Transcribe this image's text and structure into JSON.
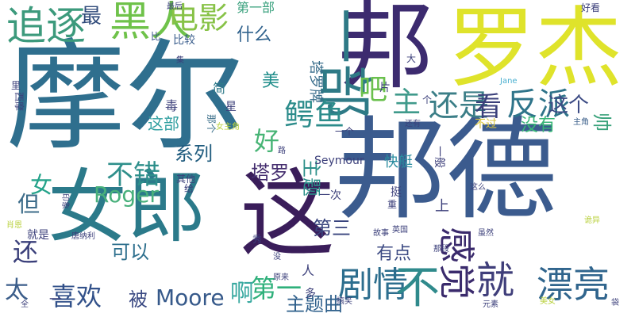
{
  "word_cloud": {
    "words": [
      {
        "text": "摩尔",
        "color": "#2f6f8e"
      },
      {
        "text": "邦德",
        "color": "#3b5b8e"
      },
      {
        "text": "罗杰",
        "color": "#dfe32b"
      },
      {
        "text": "女郎",
        "color": "#2b7a8a"
      },
      {
        "text": "邦",
        "color": "#3c2b6f"
      },
      {
        "text": "这",
        "color": "#3a1d5a"
      },
      {
        "text": "一部",
        "color": "#2e7a86"
      },
      {
        "text": "黑人",
        "color": "#6fc24a"
      },
      {
        "text": "追逐",
        "color": "#3c9a7c"
      },
      {
        "text": "电影",
        "color": "#87c247"
      },
      {
        "text": "最",
        "color": "#2f4a7a"
      },
      {
        "text": "第一部",
        "color": "#38a07c"
      },
      {
        "text": "什么",
        "color": "#30628d"
      },
      {
        "text": "比较",
        "color": "#3a5d8c"
      },
      {
        "text": "比",
        "color": "#38548a"
      },
      {
        "text": "塔罗牌",
        "color": "#3a6e8c"
      },
      {
        "text": "美",
        "color": "#1f8d8a"
      },
      {
        "text": "吧",
        "color": "#6ac04d"
      },
      {
        "text": "鳄鱼",
        "color": "#2c8c8b"
      },
      {
        "text": "主",
        "color": "#3f9a8b"
      },
      {
        "text": "还是",
        "color": "#3b7e87"
      },
      {
        "text": "反派",
        "color": "#2f748a"
      },
      {
        "text": "看",
        "color": "#3a3f7a"
      },
      {
        "text": "这个",
        "color": "#3c4b84"
      },
      {
        "text": "帅",
        "color": "#39a27b"
      },
      {
        "text": "没有",
        "color": "#38b577"
      },
      {
        "text": "这部",
        "color": "#2f9fa0"
      },
      {
        "text": "好",
        "color": "#47b475"
      },
      {
        "text": "系列",
        "color": "#1f5b7e"
      },
      {
        "text": "不错",
        "color": "#2e8f8b"
      },
      {
        "text": "女",
        "color": "#24a38a"
      },
      {
        "text": "Roger",
        "color": "#48b07b"
      },
      {
        "text": "塔罗",
        "color": "#452e6f"
      },
      {
        "text": "主题",
        "color": "#2c908a"
      },
      {
        "text": "但",
        "color": "#3d6c8a"
      },
      {
        "text": "还",
        "color": "#3a3f7a"
      },
      {
        "text": "第三",
        "color": "#39447d"
      },
      {
        "text": "可以",
        "color": "#2d6f8d"
      },
      {
        "text": "有点",
        "color": "#3c4a83"
      },
      {
        "text": "感觉",
        "color": "#3a2a6c"
      },
      {
        "text": "剧情",
        "color": "#2d6e8e"
      },
      {
        "text": "不",
        "color": "#2f8a8c"
      },
      {
        "text": "就",
        "color": "#3f3e7a"
      },
      {
        "text": "漂亮",
        "color": "#30658d"
      },
      {
        "text": "喜欢",
        "color": "#32518a"
      },
      {
        "text": "第一",
        "color": "#2fb07b"
      },
      {
        "text": "主题曲",
        "color": "#2e5f8b"
      },
      {
        "text": "啊",
        "color": "#39a9a0"
      },
      {
        "text": "太",
        "color": "#3b5d8a"
      },
      {
        "text": "被",
        "color": "#3b4a83"
      },
      {
        "text": "Moore",
        "color": "#36598a"
      },
      {
        "text": "Seymour",
        "color": "#3b3f7a"
      },
      {
        "text": "Jane",
        "color": "#4ab0d0"
      },
      {
        "text": "快艇",
        "color": "#2a8c9f"
      },
      {
        "text": "一般",
        "color": "#3c3f7a"
      },
      {
        "text": "最后",
        "color": "#3b3f7a"
      },
      {
        "text": "好看",
        "color": "#3b3f7a"
      },
      {
        "text": "大",
        "color": "#3b3f7a"
      },
      {
        "text": "简",
        "color": "#2e7a8a"
      },
      {
        "text": "毒",
        "color": "#3b3f7a"
      },
      {
        "text": "星",
        "color": "#3b3f7a"
      },
      {
        "text": "那个",
        "color": "#3b6f8a"
      },
      {
        "text": "女主角",
        "color": "#b8d03b"
      },
      {
        "text": "还有",
        "color": "#3b3f7a"
      },
      {
        "text": "不过",
        "color": "#d8c43b"
      },
      {
        "text": "主角",
        "color": "#3b5f8a"
      },
      {
        "text": "一个",
        "color": "#3b3f7a"
      },
      {
        "text": "其他",
        "color": "#3b3f7a"
      },
      {
        "text": "给",
        "color": "#3b3f7a"
      },
      {
        "text": "一次",
        "color": "#3b3f7a"
      },
      {
        "text": "挺",
        "color": "#3b3f7a"
      },
      {
        "text": "这么",
        "color": "#3b3f7a"
      },
      {
        "text": "上",
        "color": "#3b3f7a"
      },
      {
        "text": "里",
        "color": "#3b3f7a"
      },
      {
        "text": "西摩",
        "color": "#3b3f7a"
      },
      {
        "text": "印象",
        "color": "#3b3f7a"
      },
      {
        "text": "肖恩",
        "color": "#b8d03b"
      },
      {
        "text": "就是",
        "color": "#3b3f7a"
      },
      {
        "text": "唐纳利",
        "color": "#3b3f7a"
      },
      {
        "text": "故事",
        "color": "#3b3f7a"
      },
      {
        "text": "英国",
        "color": "#3b3f7a"
      },
      {
        "text": "诡异",
        "color": "#b8d03b"
      },
      {
        "text": "虽然",
        "color": "#3b3f7a"
      },
      {
        "text": "秀",
        "color": "#3b3f7a"
      },
      {
        "text": "那段",
        "color": "#3b3f7a"
      },
      {
        "text": "人",
        "color": "#3b3f7a"
      },
      {
        "text": "多",
        "color": "#3b3f7a"
      },
      {
        "text": "原来",
        "color": "#3b3f7a"
      },
      {
        "text": "元素",
        "color": "#3b3f7a"
      },
      {
        "text": "美女",
        "color": "#b8d03b"
      },
      {
        "text": "搞笑",
        "color": "#3b3f7a"
      },
      {
        "text": "一",
        "color": "#3b3f7a"
      },
      {
        "text": "全",
        "color": "#3b3f7a"
      },
      {
        "text": "片",
        "color": "#3b3f7a"
      },
      {
        "text": "个",
        "color": "#3b3f7a"
      },
      {
        "text": "重",
        "color": "#3b3f7a"
      },
      {
        "text": "袋",
        "color": "#3b3f7a"
      },
      {
        "text": "集",
        "color": "#3b3f7a"
      },
      {
        "text": "路",
        "color": "#3b3f7a"
      },
      {
        "text": "没",
        "color": "#3b3f7a"
      }
    ]
  }
}
